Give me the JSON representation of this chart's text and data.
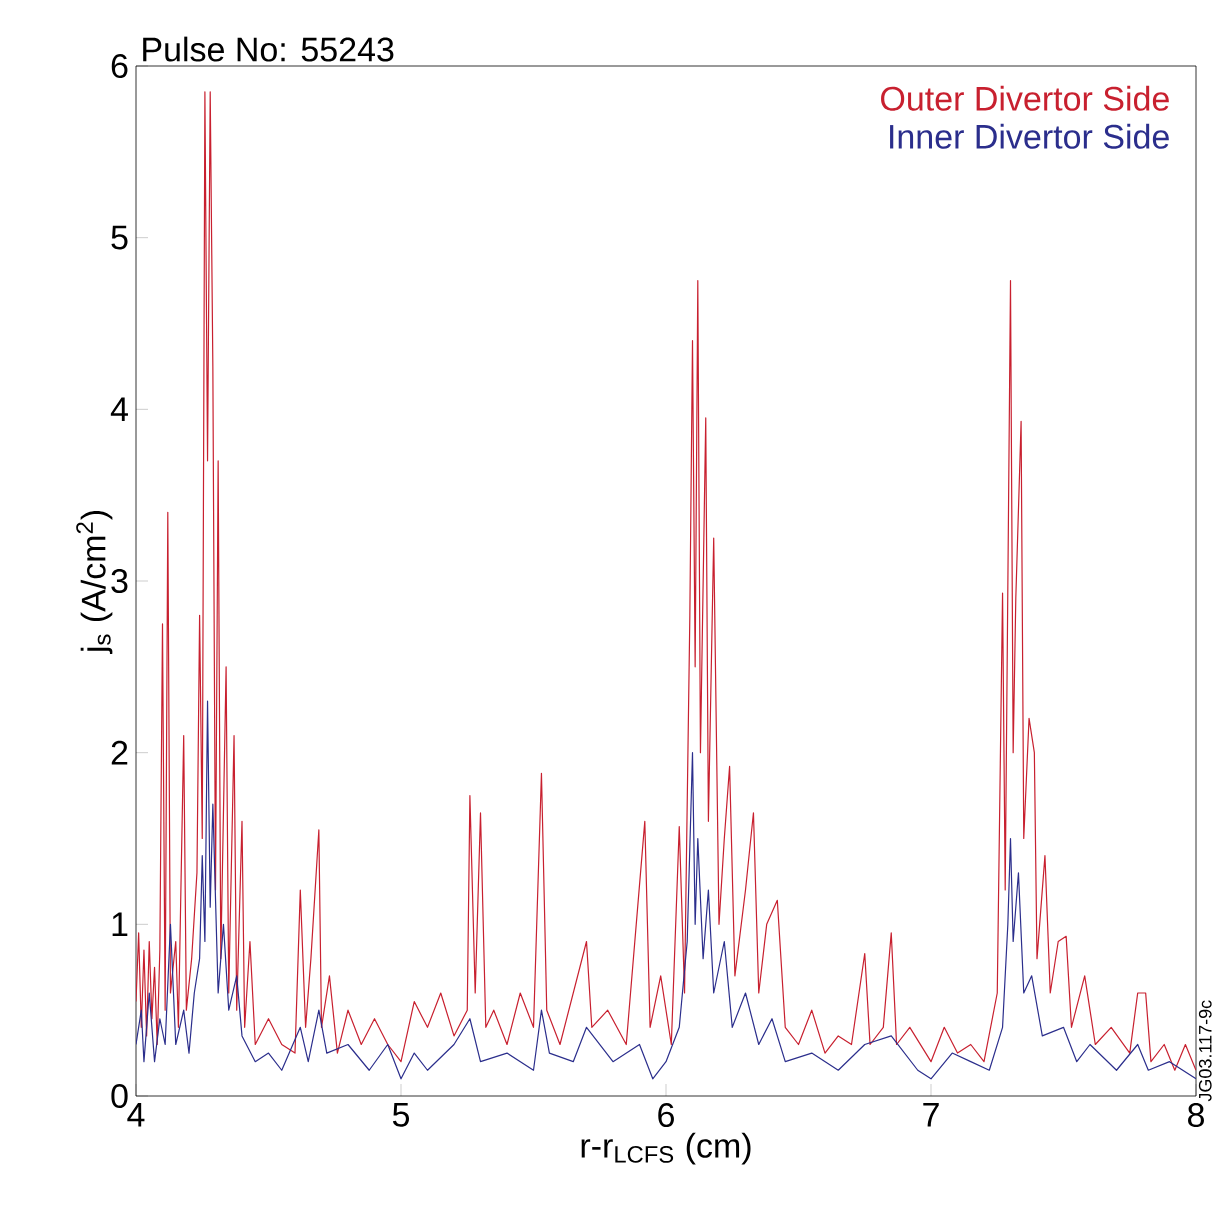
{
  "chart_data": {
    "type": "line",
    "title": "Pulse No: 55243",
    "xlabel": "r-r$_{LCFS}$ (cm)",
    "ylabel": "j$_{s}$ (A/cm$^{2}$)",
    "xlim": [
      4,
      8
    ],
    "ylim": [
      0,
      6
    ],
    "xticks": [
      4,
      5,
      6,
      7,
      8
    ],
    "yticks": [
      0,
      1,
      2,
      3,
      4,
      5,
      6
    ],
    "legend": "top right",
    "marker": "none",
    "line_style": "solid",
    "annotations": [
      "JG03.117-9c"
    ],
    "series": [
      {
        "name": "Outer Divertor Side",
        "color": "#c8202f",
        "x": [
          4.0,
          4.01,
          4.02,
          4.03,
          4.04,
          4.05,
          4.06,
          4.07,
          4.08,
          4.09,
          4.1,
          4.11,
          4.12,
          4.13,
          4.15,
          4.16,
          4.18,
          4.19,
          4.21,
          4.23,
          4.24,
          4.25,
          4.26,
          4.27,
          4.28,
          4.29,
          4.3,
          4.31,
          4.32,
          4.34,
          4.35,
          4.37,
          4.38,
          4.4,
          4.41,
          4.43,
          4.45,
          4.5,
          4.55,
          4.6,
          4.62,
          4.64,
          4.66,
          4.69,
          4.7,
          4.73,
          4.76,
          4.8,
          4.85,
          4.9,
          4.95,
          5.0,
          5.05,
          5.1,
          5.15,
          5.2,
          5.25,
          5.26,
          5.28,
          5.3,
          5.32,
          5.35,
          5.4,
          5.45,
          5.5,
          5.53,
          5.55,
          5.6,
          5.65,
          5.7,
          5.72,
          5.78,
          5.85,
          5.92,
          5.94,
          5.98,
          6.02,
          6.05,
          6.07,
          6.09,
          6.1,
          6.11,
          6.12,
          6.13,
          6.15,
          6.16,
          6.18,
          6.2,
          6.22,
          6.24,
          6.26,
          6.3,
          6.33,
          6.35,
          6.38,
          6.42,
          6.45,
          6.5,
          6.55,
          6.6,
          6.65,
          6.7,
          6.75,
          6.77,
          6.82,
          6.85,
          6.87,
          6.92,
          7.0,
          7.05,
          7.1,
          7.15,
          7.2,
          7.25,
          7.27,
          7.28,
          7.3,
          7.31,
          7.32,
          7.34,
          7.35,
          7.37,
          7.39,
          7.4,
          7.43,
          7.45,
          7.48,
          7.51,
          7.53,
          7.58,
          7.62,
          7.68,
          7.75,
          7.78,
          7.81,
          7.83,
          7.88,
          7.92,
          7.96,
          8.0
        ],
        "values": [
          0.55,
          0.95,
          0.4,
          0.85,
          0.35,
          0.9,
          0.45,
          0.75,
          0.3,
          0.85,
          2.75,
          0.5,
          3.4,
          0.6,
          0.9,
          0.4,
          2.1,
          0.5,
          0.8,
          1.3,
          2.8,
          1.5,
          5.85,
          3.7,
          5.85,
          4.25,
          1.2,
          3.7,
          0.8,
          2.5,
          0.6,
          2.1,
          0.5,
          1.6,
          0.4,
          0.9,
          0.3,
          0.45,
          0.3,
          0.25,
          1.2,
          0.4,
          0.8,
          1.55,
          0.4,
          0.7,
          0.25,
          0.5,
          0.3,
          0.45,
          0.3,
          0.2,
          0.55,
          0.4,
          0.6,
          0.35,
          0.5,
          1.75,
          0.6,
          1.65,
          0.4,
          0.5,
          0.3,
          0.6,
          0.4,
          1.88,
          0.5,
          0.3,
          0.6,
          0.9,
          0.4,
          0.5,
          0.3,
          1.6,
          0.4,
          0.7,
          0.3,
          1.57,
          0.6,
          2.8,
          4.4,
          2.5,
          4.75,
          2.0,
          3.95,
          1.6,
          3.25,
          1.0,
          1.5,
          1.92,
          0.7,
          1.2,
          1.65,
          0.6,
          1.0,
          1.14,
          0.4,
          0.3,
          0.5,
          0.25,
          0.35,
          0.3,
          0.83,
          0.3,
          0.4,
          0.95,
          0.3,
          0.4,
          0.2,
          0.4,
          0.25,
          0.3,
          0.2,
          0.6,
          2.93,
          1.2,
          4.75,
          2.0,
          2.9,
          3.93,
          1.5,
          2.2,
          2.0,
          0.8,
          1.4,
          0.6,
          0.9,
          0.93,
          0.4,
          0.7,
          0.3,
          0.4,
          0.25,
          0.6,
          0.6,
          0.2,
          0.3,
          0.15,
          0.3,
          0.15
        ]
      },
      {
        "name": "Inner Divertor Side",
        "color": "#2b2e8c",
        "x": [
          4.0,
          4.02,
          4.03,
          4.05,
          4.07,
          4.09,
          4.11,
          4.13,
          4.15,
          4.18,
          4.2,
          4.22,
          4.24,
          4.25,
          4.26,
          4.27,
          4.28,
          4.29,
          4.31,
          4.33,
          4.35,
          4.38,
          4.4,
          4.45,
          4.5,
          4.55,
          4.62,
          4.65,
          4.69,
          4.72,
          4.8,
          4.88,
          4.95,
          5.0,
          5.05,
          5.1,
          5.2,
          5.26,
          5.3,
          5.4,
          5.5,
          5.53,
          5.56,
          5.65,
          5.7,
          5.8,
          5.9,
          5.95,
          6.0,
          6.05,
          6.08,
          6.1,
          6.11,
          6.12,
          6.14,
          6.16,
          6.18,
          6.22,
          6.25,
          6.3,
          6.35,
          6.4,
          6.45,
          6.55,
          6.65,
          6.75,
          6.85,
          6.95,
          7.0,
          7.08,
          7.15,
          7.22,
          7.27,
          7.29,
          7.3,
          7.31,
          7.33,
          7.35,
          7.38,
          7.42,
          7.5,
          7.55,
          7.6,
          7.7,
          7.78,
          7.82,
          7.9,
          8.0
        ],
        "values": [
          0.3,
          0.5,
          0.2,
          0.6,
          0.2,
          0.45,
          0.3,
          1.0,
          0.3,
          0.5,
          0.25,
          0.6,
          0.8,
          1.4,
          0.9,
          2.3,
          1.1,
          1.7,
          0.6,
          1.0,
          0.5,
          0.7,
          0.35,
          0.2,
          0.25,
          0.15,
          0.4,
          0.2,
          0.5,
          0.25,
          0.3,
          0.15,
          0.3,
          0.1,
          0.25,
          0.15,
          0.3,
          0.45,
          0.2,
          0.25,
          0.15,
          0.5,
          0.25,
          0.2,
          0.4,
          0.2,
          0.3,
          0.1,
          0.2,
          0.4,
          0.9,
          2.0,
          1.0,
          1.5,
          0.8,
          1.2,
          0.6,
          0.9,
          0.4,
          0.6,
          0.3,
          0.45,
          0.2,
          0.25,
          0.15,
          0.3,
          0.35,
          0.15,
          0.1,
          0.25,
          0.2,
          0.15,
          0.4,
          1.0,
          1.5,
          0.9,
          1.3,
          0.6,
          0.7,
          0.35,
          0.4,
          0.2,
          0.3,
          0.15,
          0.3,
          0.15,
          0.2,
          0.1
        ]
      }
    ]
  }
}
